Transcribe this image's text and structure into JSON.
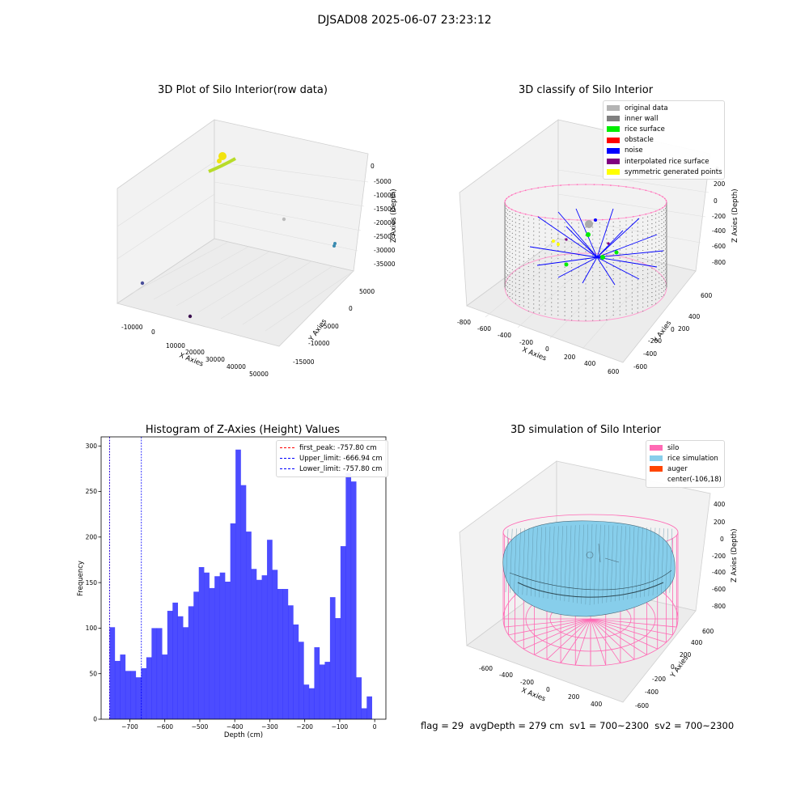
{
  "figure_title": "DJSAD08 2025-06-07 23:23:12",
  "status_line": "flag = 29  avgDepth = 279 cm  sv1 = 700~2300  sv2 = 700~2300",
  "panels": {
    "raw": {
      "title": "3D Plot of Silo Interior(row data)",
      "x_label": "X Axies",
      "y_label": "Y Axies",
      "z_label": "Z Axies (Depth)",
      "x_ticks": [
        "-10000",
        "0",
        "10000",
        "20000",
        "30000",
        "40000",
        "50000"
      ],
      "y_ticks": [
        "5000",
        "0",
        "-5000",
        "-10000",
        "-15000"
      ],
      "z_ticks": [
        "0",
        "-5000",
        "-10000",
        "-15000",
        "-20000",
        "-25000",
        "-30000",
        "-35000"
      ]
    },
    "classify": {
      "title": "3D classify of Silo Interior",
      "x_label": "X Axies",
      "y_label": "Y Axies",
      "z_label": "Z Axies (Depth)",
      "x_ticks": [
        "-800",
        "-600",
        "-400",
        "-200",
        "0",
        "200",
        "400",
        "600"
      ],
      "y_ticks": [
        "600",
        "400",
        "200",
        "0",
        "-200",
        "-400",
        "-600"
      ],
      "z_ticks": [
        "200",
        "0",
        "-200",
        "-400",
        "-600",
        "-800"
      ],
      "z_top_tick_partial": "0",
      "legend": [
        {
          "label": "original data",
          "color": "#b4b4b4"
        },
        {
          "label": "inner wall",
          "color": "#808080"
        },
        {
          "label": "rice surface",
          "color": "#00ee00"
        },
        {
          "label": "obstacle",
          "color": "#ff0000"
        },
        {
          "label": "noise",
          "color": "#0000ff"
        },
        {
          "label": "interpolated rice surface",
          "color": "#800080"
        },
        {
          "label": "symmetric generated points",
          "color": "#ffff00"
        }
      ]
    },
    "simulation": {
      "title": "3D simulation of Silo Interior",
      "x_label": "X Axies",
      "y_label": "Y Axies",
      "z_label": "Z Axies (Depth)",
      "x_ticks": [
        "-600",
        "-400",
        "-200",
        "0",
        "200",
        "400"
      ],
      "y_ticks": [
        "600",
        "400",
        "200",
        "0",
        "-200",
        "-400",
        "-600"
      ],
      "z_ticks": [
        "400",
        "200",
        "0",
        "-200",
        "-400",
        "-600",
        "-800"
      ],
      "legend": [
        {
          "label": "silo",
          "color": "#ff69b4"
        },
        {
          "label": "rice simulation",
          "color": "#87ceeb"
        },
        {
          "label": "auger",
          "color": "#ff4500"
        },
        {
          "label": "center(-106,18)",
          "color": ""
        }
      ]
    }
  },
  "chart_data": [
    {
      "type": "bar",
      "title": "Histogram of Z-Axies (Height) Values",
      "xlabel": "Depth (cm)",
      "ylabel": "Frequency",
      "xlim": [
        -782,
        32
      ],
      "ylim": [
        0,
        310
      ],
      "x_ticks": [
        "-700",
        "-600",
        "-500",
        "-400",
        "-300",
        "-200",
        "-100",
        "0"
      ],
      "y_ticks": [
        "0",
        "50",
        "100",
        "150",
        "200",
        "250",
        "300"
      ],
      "bar_color": "#0000ff",
      "bin_start": -757.8,
      "bin_width": 15.0,
      "values": [
        101,
        64,
        71,
        53,
        53,
        46,
        56,
        68,
        100,
        100,
        71,
        119,
        128,
        113,
        101,
        124,
        140,
        167,
        161,
        144,
        157,
        161,
        151,
        215,
        296,
        257,
        206,
        165,
        153,
        158,
        197,
        164,
        143,
        143,
        125,
        104,
        85,
        38,
        34,
        79,
        60,
        63,
        134,
        111,
        190,
        270,
        261,
        46,
        12,
        25
      ],
      "vlines": [
        {
          "label": "first_peak: -757.80 cm",
          "x": -757.8,
          "color": "#ff0000"
        },
        {
          "label": "Upper_limit: -666.94 cm",
          "x": -666.94,
          "color": "#0000ff"
        },
        {
          "label": "Lower_limit: -757.80 cm",
          "x": -757.8,
          "color": "#0000ff"
        }
      ],
      "legend_position": "top-right"
    }
  ]
}
